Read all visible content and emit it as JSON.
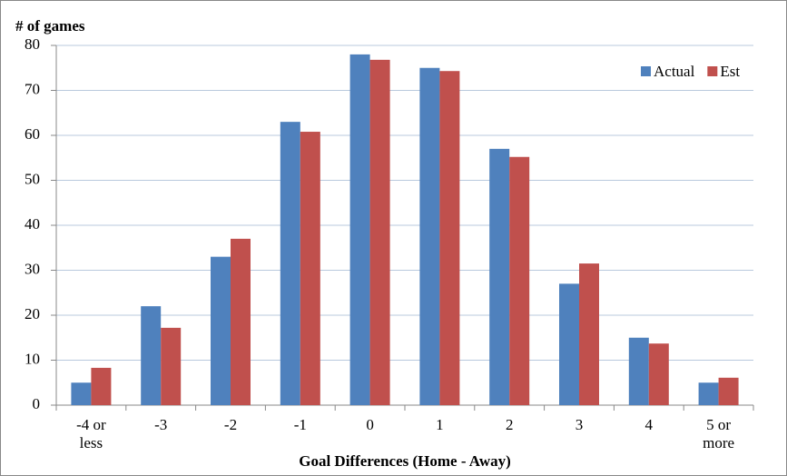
{
  "chart_data": {
    "type": "bar",
    "y_label": "# of games",
    "x_label": "Goal Differences (Home - Away)",
    "categories": [
      "-4 or less",
      "-3",
      "-2",
      "-1",
      "0",
      "1",
      "2",
      "3",
      "4",
      "5 or more"
    ],
    "series": [
      {
        "name": "Actual",
        "color": "#4f81bd",
        "values": [
          5,
          22,
          33,
          63,
          78,
          75,
          57,
          27,
          15,
          5
        ]
      },
      {
        "name": "Est",
        "color": "#c0504d",
        "values": [
          8.3,
          17.2,
          37,
          60.8,
          76.8,
          74.3,
          55.2,
          31.5,
          13.7,
          6.1
        ]
      }
    ],
    "ylim": [
      0,
      80
    ],
    "yticks": [
      0,
      10,
      20,
      30,
      40,
      50,
      60,
      70,
      80
    ],
    "grid": true,
    "legend": "top-right"
  }
}
